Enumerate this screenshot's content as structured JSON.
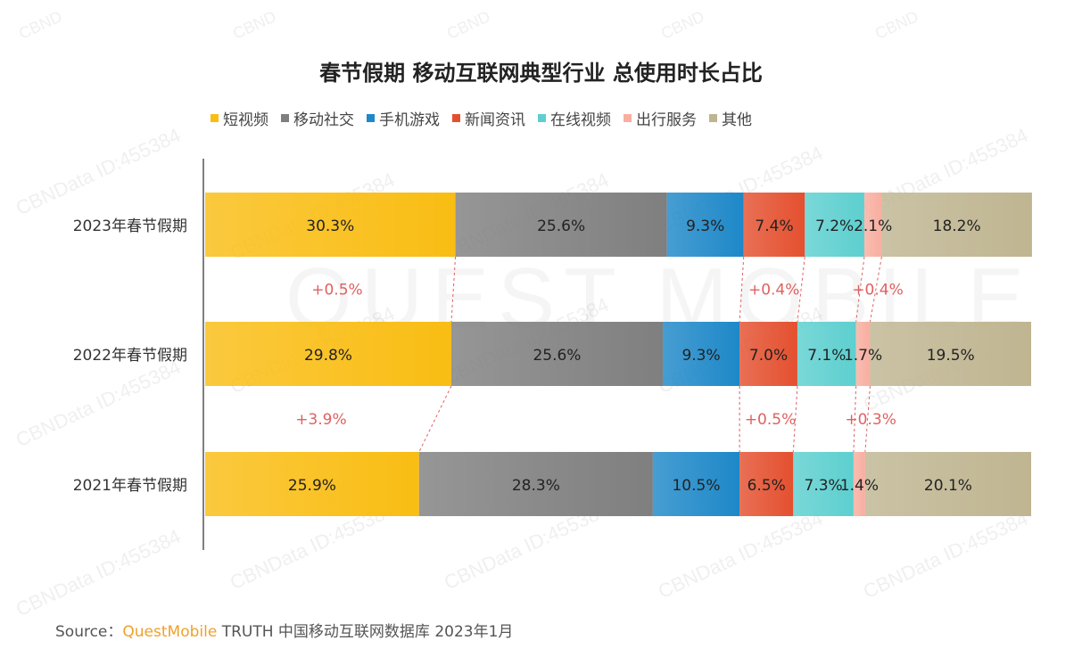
{
  "title": "春节假期 移动互联网典型行业 总使用时长占比",
  "watermark_text": "CBNData ID:455384",
  "watermark_short": "CBND",
  "background_mark": "QUEST MOBILE",
  "source": {
    "prefix": "Source：",
    "brand": "QuestMobile",
    "suffix": "TRUTH 中国移动互联网数据库 2023年1月"
  },
  "chart_data": {
    "type": "bar",
    "orientation": "horizontal",
    "stacked": "percent",
    "title": "春节假期 移动互联网典型行业 总使用时长占比",
    "categories": [
      "2023年春节假期",
      "2022年春节假期",
      "2021年春节假期"
    ],
    "series": [
      {
        "name": "短视频",
        "color": "#f9bd13",
        "values": [
          30.3,
          29.8,
          25.9
        ],
        "labels": [
          "30.3%",
          "29.8%",
          "25.9%"
        ]
      },
      {
        "name": "移动社交",
        "color": "#7f7f7f",
        "values": [
          25.6,
          25.6,
          28.3
        ],
        "labels": [
          "25.6%",
          "25.6%",
          "28.3%"
        ]
      },
      {
        "name": "手机游戏",
        "color": "#1e88c8",
        "values": [
          9.3,
          9.3,
          10.5
        ],
        "labels": [
          "9.3%",
          "9.3%",
          "10.5%"
        ]
      },
      {
        "name": "新闻资讯",
        "color": "#e4502f",
        "values": [
          7.4,
          7.0,
          6.5
        ],
        "labels": [
          "7.4%",
          "7.0%",
          "6.5%"
        ]
      },
      {
        "name": "在线视频",
        "color": "#5dcfcf",
        "values": [
          7.2,
          7.1,
          7.3
        ],
        "labels": [
          "7.2%",
          "7.1%",
          "7.3%"
        ]
      },
      {
        "name": "出行服务",
        "color": "#f8aea0",
        "values": [
          2.1,
          1.7,
          1.4
        ],
        "labels": [
          "2.1%",
          "1.7%",
          "1.4%"
        ]
      },
      {
        "name": "其他",
        "color": "#bfb591",
        "values": [
          18.2,
          19.5,
          20.1
        ],
        "labels": [
          "18.2%",
          "19.5%",
          "20.1%"
        ]
      }
    ],
    "changes": [
      {
        "between": [
          "2023年春节假期",
          "2022年春节假期"
        ],
        "items": [
          {
            "series": "短视频",
            "label": "+0.5%"
          },
          {
            "series": "新闻资讯",
            "label": "+0.4%"
          },
          {
            "series": "出行服务",
            "label": "+0.4%"
          }
        ]
      },
      {
        "between": [
          "2022年春节假期",
          "2021年春节假期"
        ],
        "items": [
          {
            "series": "短视频",
            "label": "+3.9%"
          },
          {
            "series": "新闻资讯",
            "label": "+0.5%"
          },
          {
            "series": "出行服务",
            "label": "+0.3%"
          }
        ]
      }
    ],
    "connector_color": "#e06060",
    "legend_position": "top",
    "xlim": [
      0,
      100
    ],
    "grid": false
  }
}
